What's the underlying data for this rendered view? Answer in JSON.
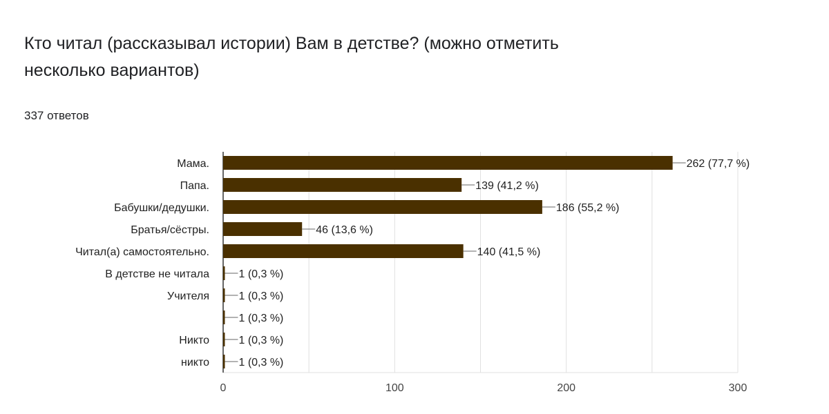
{
  "question": {
    "title": "Кто читал (рассказывал истории) Вам в детстве? (можно отметить несколько вариантов)",
    "response_count": "337 ответов"
  },
  "colors": {
    "bar": "#4a3000",
    "grid": "#e0e0e0",
    "axis": "#333333",
    "text": "#212121"
  },
  "chart_data": {
    "type": "bar",
    "orientation": "horizontal",
    "categories": [
      "Мама.",
      "Папа.",
      "Бабушки/дедушки.",
      "Братья/сёстры.",
      "Читал(а) самостоятельно.",
      "В детстве не читала",
      "Учителя",
      "",
      "Никто",
      "никто"
    ],
    "values": [
      262,
      139,
      186,
      46,
      140,
      1,
      1,
      1,
      1,
      1
    ],
    "data_labels": [
      "262 (77,7 %)",
      "139 (41,2 %)",
      "186 (55,2 %)",
      "46 (13,6 %)",
      "140 (41,5 %)",
      "1 (0,3 %)",
      "1 (0,3 %)",
      "1 (0,3 %)",
      "1 (0,3 %)",
      "1 (0,3 %)"
    ],
    "xlim": [
      0,
      300
    ],
    "xticks": [
      0,
      100,
      200,
      300
    ],
    "grid": true
  }
}
